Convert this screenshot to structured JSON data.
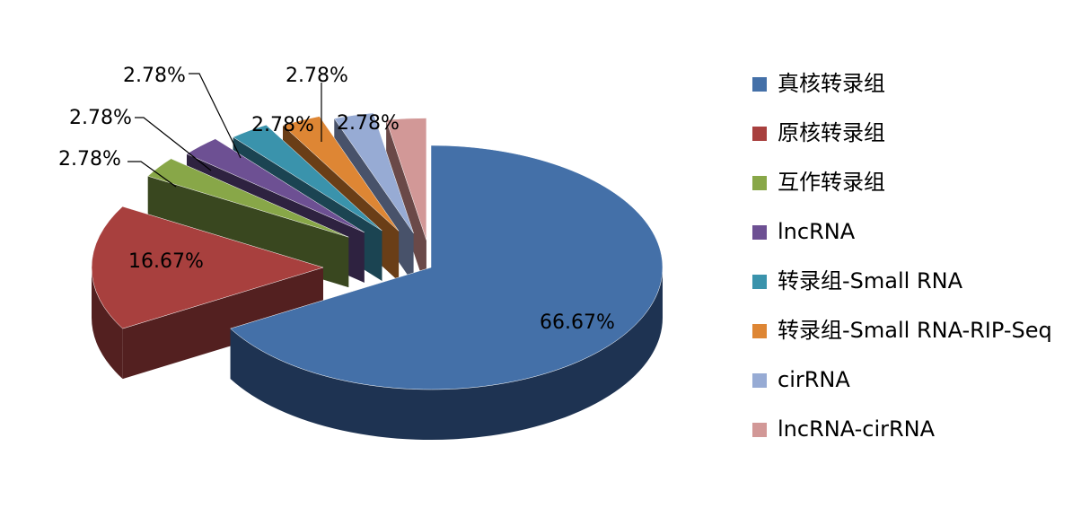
{
  "chart_data": {
    "type": "pie",
    "style": "3d-exploded",
    "title": "",
    "legend_position": "right",
    "slices": [
      {
        "label": "真核转录组",
        "value": 66.67,
        "display": "66.67%",
        "color": "#4470A8",
        "side": "#1E3352"
      },
      {
        "label": "原核转录组",
        "value": 16.67,
        "display": "16.67%",
        "color": "#A8403E",
        "side": "#532020"
      },
      {
        "label": "互作转录组",
        "value": 2.78,
        "display": "2.78%",
        "color": "#88A748",
        "side": "#39471F"
      },
      {
        "label": "lncRNA",
        "value": 2.78,
        "display": "2.78%",
        "color": "#6D5093",
        "side": "#2E2240"
      },
      {
        "label": "转录组-Small RNA",
        "value": 2.78,
        "display": "2.78%",
        "color": "#3A93AC",
        "side": "#1B4452"
      },
      {
        "label": "转录组-Small RNA-RIP-Seq",
        "value": 2.78,
        "display": "2.78%",
        "color": "#DE8634",
        "side": "#6A3E17"
      },
      {
        "label": "cirRNA",
        "value": 2.78,
        "display": "2.78%",
        "color": "#97ABD4",
        "side": "#48526A"
      },
      {
        "label": "lncRNA-cirRNA",
        "value": 2.78,
        "display": "2.78%",
        "color": "#D29897",
        "side": "#6A4948"
      }
    ]
  }
}
